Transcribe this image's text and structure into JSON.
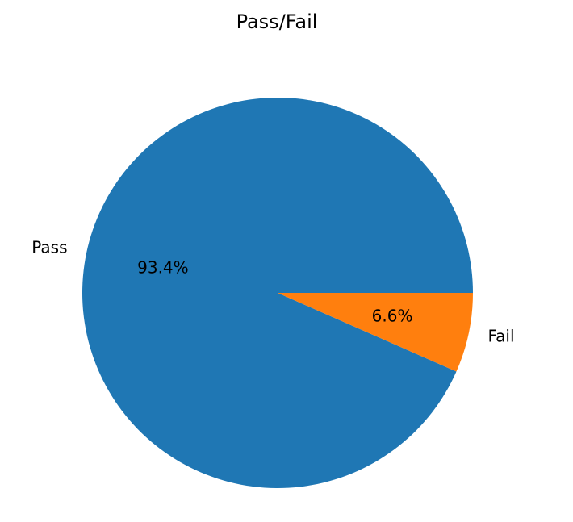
{
  "chart_data": {
    "type": "pie",
    "title": "Pass/Fail",
    "labels": [
      "Pass",
      "Fail"
    ],
    "values": [
      93.4,
      6.6
    ],
    "percent_labels": [
      "93.4%",
      "6.6%"
    ],
    "colors": [
      "#1f77b4",
      "#ff7f0e"
    ],
    "start_angle_deg": 0,
    "direction": "counterclockwise"
  }
}
